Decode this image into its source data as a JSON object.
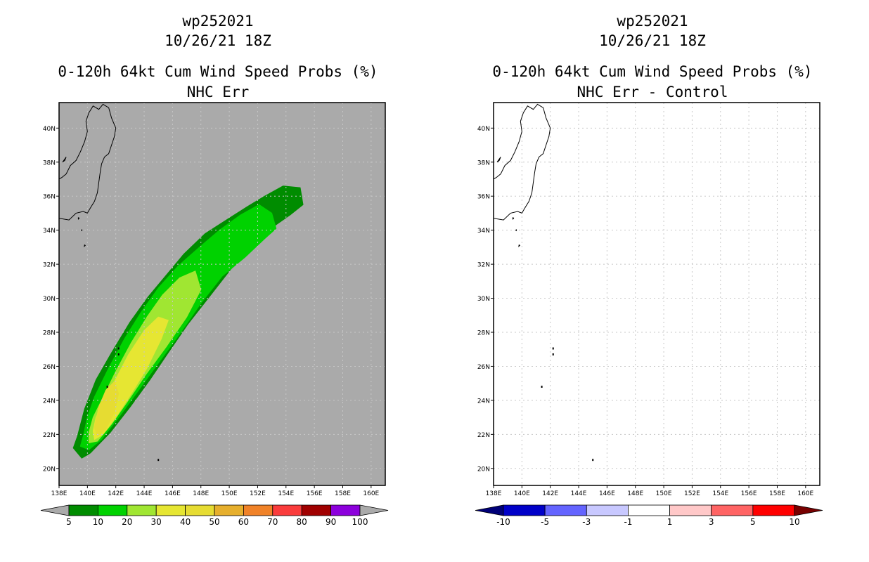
{
  "colors": {
    "land_sea_bg": "#aaaaaa",
    "coast": "#000000",
    "grid": "#c8c8c8"
  },
  "chart_data": [
    {
      "type": "heatmap",
      "storm_id": "wp252021",
      "datetime": "10/26/21 18Z",
      "title": "0-120h 64kt Cum Wind Speed Probs (%)",
      "subtitle": "NHC Err",
      "x_ticks": [
        "138E",
        "140E",
        "142E",
        "144E",
        "146E",
        "148E",
        "150E",
        "152E",
        "154E",
        "156E",
        "158E",
        "160E"
      ],
      "y_ticks": [
        "20N",
        "22N",
        "24N",
        "26N",
        "28N",
        "30N",
        "32N",
        "34N",
        "36N",
        "38N",
        "40N"
      ],
      "xlim": [
        138,
        161
      ],
      "ylim": [
        19,
        41.5
      ],
      "colorbar": {
        "labels": [
          "5",
          "10",
          "20",
          "30",
          "40",
          "50",
          "60",
          "70",
          "80",
          "90",
          "100"
        ],
        "colors": [
          "#008c00",
          "#00d200",
          "#a0e632",
          "#e6e632",
          "#e6dc32",
          "#e6af2d",
          "#f08228",
          "#fa3c3c",
          "#a00000",
          "#8c00dc"
        ],
        "under": "#aaaaaa",
        "over": "#aaaaaa"
      },
      "contours": [
        {
          "level": "5-10",
          "color": "#008c00",
          "polygon": [
            [
              139.3,
              21.9
            ],
            [
              139.0,
              21.2
            ],
            [
              139.6,
              20.6
            ],
            [
              140.2,
              20.9
            ],
            [
              141.6,
              22.1
            ],
            [
              143.0,
              23.6
            ],
            [
              144.4,
              25.2
            ],
            [
              145.7,
              26.8
            ],
            [
              147.1,
              28.5
            ],
            [
              148.7,
              30.2
            ],
            [
              150.2,
              31.8
            ],
            [
              151.6,
              33.0
            ],
            [
              153.1,
              34.2
            ],
            [
              154.3,
              34.9
            ],
            [
              155.2,
              35.5
            ],
            [
              155.0,
              36.5
            ],
            [
              153.8,
              36.6
            ],
            [
              152.5,
              36.0
            ],
            [
              151.3,
              35.4
            ],
            [
              149.8,
              34.6
            ],
            [
              148.3,
              33.8
            ],
            [
              146.8,
              32.6
            ],
            [
              145.4,
              31.2
            ],
            [
              144.3,
              30.1
            ],
            [
              143.0,
              28.6
            ],
            [
              141.7,
              26.8
            ],
            [
              140.6,
              25.2
            ],
            [
              139.8,
              23.5
            ]
          ]
        },
        {
          "level": "10-20",
          "color": "#00d200",
          "polygon": [
            [
              139.7,
              21.9
            ],
            [
              139.5,
              21.3
            ],
            [
              140.1,
              21.1
            ],
            [
              141.0,
              21.7
            ],
            [
              142.3,
              23.1
            ],
            [
              143.7,
              24.7
            ],
            [
              145.1,
              26.3
            ],
            [
              146.5,
              27.9
            ],
            [
              148.0,
              29.7
            ],
            [
              149.5,
              31.3
            ],
            [
              151.1,
              32.4
            ],
            [
              152.5,
              33.5
            ],
            [
              153.3,
              34.1
            ],
            [
              153.0,
              35.0
            ],
            [
              152.1,
              35.5
            ],
            [
              150.8,
              34.9
            ],
            [
              149.3,
              34.0
            ],
            [
              147.9,
              33.0
            ],
            [
              146.4,
              31.9
            ],
            [
              145.0,
              30.6
            ],
            [
              143.8,
              29.2
            ],
            [
              142.6,
              27.6
            ],
            [
              141.5,
              25.9
            ],
            [
              140.5,
              24.2
            ],
            [
              140.0,
              23.0
            ]
          ]
        },
        {
          "level": "20-30",
          "color": "#a0e632",
          "polygon": [
            [
              140.1,
              22.1
            ],
            [
              140.1,
              21.5
            ],
            [
              140.7,
              21.6
            ],
            [
              141.7,
              22.6
            ],
            [
              142.8,
              23.9
            ],
            [
              144.1,
              25.5
            ],
            [
              145.6,
              27.2
            ],
            [
              147.0,
              28.9
            ],
            [
              148.0,
              30.5
            ],
            [
              147.6,
              31.6
            ],
            [
              146.5,
              31.2
            ],
            [
              145.3,
              30.2
            ],
            [
              144.2,
              28.9
            ],
            [
              143.1,
              27.4
            ],
            [
              142.0,
              25.7
            ],
            [
              141.0,
              24.0
            ],
            [
              140.4,
              23.0
            ]
          ]
        },
        {
          "level": "30-40",
          "color": "#e6e632",
          "polygon": [
            [
              140.4,
              22.2
            ],
            [
              140.5,
              21.7
            ],
            [
              141.1,
              22.0
            ],
            [
              142.0,
              23.0
            ],
            [
              143.1,
              24.4
            ],
            [
              144.2,
              25.9
            ],
            [
              145.2,
              27.6
            ],
            [
              145.7,
              28.7
            ],
            [
              145.0,
              28.9
            ],
            [
              144.0,
              28.1
            ],
            [
              142.9,
              26.7
            ],
            [
              141.9,
              25.1
            ],
            [
              141.1,
              23.8
            ],
            [
              140.6,
              23.0
            ]
          ]
        },
        {
          "level": "40-50",
          "color": "#e6dc32",
          "polygon": [
            [
              140.5,
              22.4
            ],
            [
              140.7,
              21.9
            ],
            [
              141.3,
              22.3
            ],
            [
              141.9,
              23.3
            ],
            [
              142.2,
              24.4
            ],
            [
              141.9,
              25.1
            ],
            [
              141.3,
              24.6
            ],
            [
              140.8,
              23.6
            ]
          ]
        }
      ],
      "islands": [
        [
          142.2,
          27.05
        ],
        [
          142.2,
          26.7
        ],
        [
          141.4,
          24.8
        ],
        [
          145.0,
          20.5
        ]
      ]
    },
    {
      "type": "heatmap",
      "storm_id": "wp252021",
      "datetime": "10/26/21 18Z",
      "title": "0-120h 64kt Cum Wind Speed Probs (%)",
      "subtitle": "NHC Err - Control",
      "x_ticks": [
        "138E",
        "140E",
        "142E",
        "144E",
        "146E",
        "148E",
        "150E",
        "152E",
        "154E",
        "156E",
        "158E",
        "160E"
      ],
      "y_ticks": [
        "20N",
        "22N",
        "24N",
        "26N",
        "28N",
        "30N",
        "32N",
        "34N",
        "36N",
        "38N",
        "40N"
      ],
      "xlim": [
        138,
        161
      ],
      "ylim": [
        19,
        41.5
      ],
      "colorbar": {
        "labels": [
          "-10",
          "-5",
          "-3",
          "-1",
          "1",
          "3",
          "5",
          "10"
        ],
        "colors": [
          "#0000c8",
          "#6464ff",
          "#c8c8ff",
          "#ffffff",
          "#ffc8c8",
          "#ff6464",
          "#ff0000"
        ],
        "under": "#000078",
        "over": "#780000"
      },
      "contours": [],
      "islands": [
        [
          142.2,
          27.05
        ],
        [
          142.2,
          26.7
        ],
        [
          141.4,
          24.8
        ],
        [
          145.0,
          20.5
        ]
      ]
    }
  ]
}
